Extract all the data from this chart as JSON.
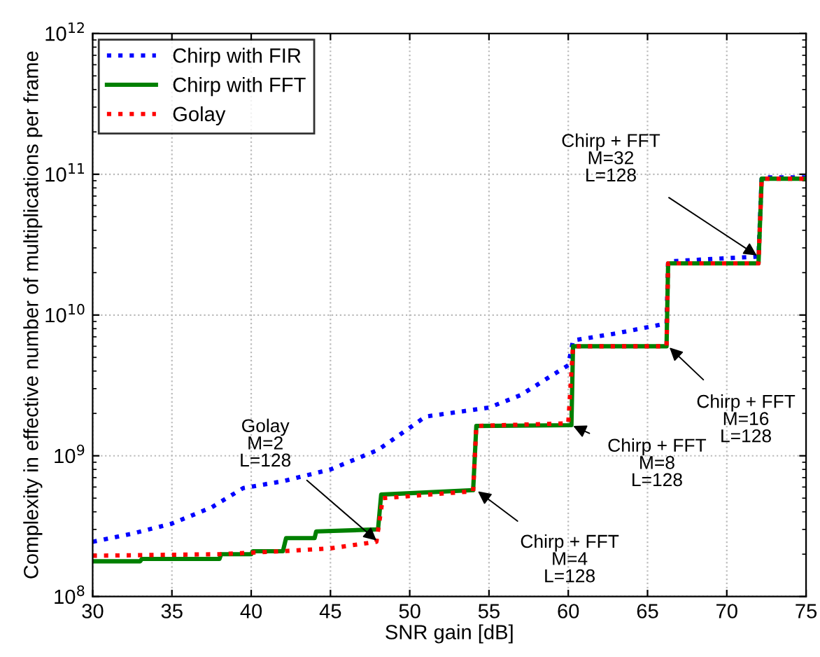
{
  "chart_data": {
    "type": "line",
    "xlabel": "SNR gain [dB]",
    "ylabel": "Complexity in effective number of multiplications per frame",
    "xlim": [
      30,
      75
    ],
    "xticks": [
      30,
      35,
      40,
      45,
      50,
      55,
      60,
      65,
      70,
      75
    ],
    "ylim": [
      100000000.0,
      1000000000000.0
    ],
    "yticks": [
      {
        "value": 100000000.0,
        "label": "10$^{8}$"
      },
      {
        "value": 1000000000.0,
        "label": "10$^{9}$"
      },
      {
        "value": 10000000000.0,
        "label": "10$^{10}$"
      },
      {
        "value": 100000000000.0,
        "label": "10$^{11}$"
      },
      {
        "value": 1000000000000.0,
        "label": "10$^{12}$"
      }
    ],
    "log": "y",
    "grid": true,
    "legend": "top left",
    "marker": "none",
    "series": [
      {
        "name": "Chirp with FIR",
        "color": "#0000ff",
        "line_style": "dotted",
        "x": [
          30,
          32.5,
          35,
          37.5,
          39.5,
          42,
          45,
          48,
          51,
          55,
          57,
          60,
          60.3,
          63,
          66.2,
          66.3,
          69,
          72,
          72.2,
          75
        ],
        "values": [
          245000000.0,
          280000000.0,
          330000000.0,
          430000000.0,
          590000000.0,
          660000000.0,
          800000000.0,
          1100000000.0,
          1900000000.0,
          2200000000.0,
          2700000000.0,
          4400000000.0,
          6600000000.0,
          7400000000.0,
          8700000000.0,
          24000000000.0,
          25000000000.0,
          26000000000.0,
          95000000000.0,
          95000000000.0
        ]
      },
      {
        "name": "Chirp with FFT",
        "color": "#008000",
        "line_style": "solid",
        "x": [
          30,
          33,
          33.1,
          38,
          38.1,
          40,
          40.1,
          42,
          42.2,
          44,
          44.1,
          48,
          48.2,
          54,
          54.2,
          60.2,
          60.3,
          66.2,
          66.3,
          72,
          72.2,
          75
        ],
        "values": [
          178000000.0,
          178000000.0,
          185000000.0,
          185000000.0,
          200000000.0,
          200000000.0,
          210000000.0,
          210000000.0,
          260000000.0,
          260000000.0,
          290000000.0,
          300000000.0,
          530000000.0,
          570000000.0,
          1630000000.0,
          1650000000.0,
          6000000000.0,
          6000000000.0,
          23300000000.0,
          23300000000.0,
          93000000000.0,
          93000000000.0
        ]
      },
      {
        "name": "Golay",
        "color": "#ff0000",
        "line_style": "dotted",
        "x": [
          30,
          38,
          42,
          45,
          47.9,
          48.3,
          54,
          54.2,
          60,
          60.3,
          66.2,
          66.3,
          72,
          72.2,
          75
        ],
        "values": [
          195000000.0,
          200000000.0,
          210000000.0,
          220000000.0,
          245000000.0,
          500000000.0,
          560000000.0,
          1630000000.0,
          1700000000.0,
          6000000000.0,
          6000000000.0,
          23300000000.0,
          23300000000.0,
          93000000000.0,
          93000000000.0
        ]
      }
    ],
    "annotations": [
      {
        "text": "Golay\nM=2\nL=128",
        "x": 48,
        "y": 245000000.0
      },
      {
        "text": "Chirp + FFT\nM=4\nL=128",
        "x": 54.2,
        "y": 570000000.0
      },
      {
        "text": "Chirp + FFT\nM=8\nL=128",
        "x": 60.2,
        "y": 1650000000.0
      },
      {
        "text": "Chirp + FFT\nM=16\nL=128",
        "x": 66.3,
        "y": 6000000000.0
      },
      {
        "text": "Chirp + FFT\nM=32\nL=128",
        "x": 72,
        "y": 26000000000.0
      }
    ]
  }
}
